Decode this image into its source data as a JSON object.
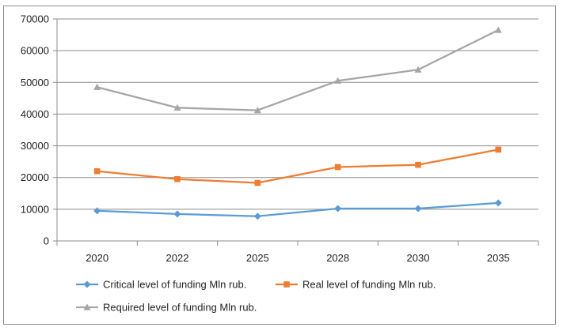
{
  "chart_data": {
    "type": "line",
    "title": "",
    "xlabel": "",
    "ylabel": "",
    "categories": [
      "2020",
      "2022",
      "2025",
      "2028",
      "2030",
      "2035"
    ],
    "ylim": [
      0,
      70000
    ],
    "yticks": [
      0,
      10000,
      20000,
      30000,
      40000,
      50000,
      60000,
      70000
    ],
    "ytick_labels": [
      "0",
      "10000",
      "20000",
      "30000",
      "40000",
      "50000",
      "60000",
      "70000"
    ],
    "grid": "horizontal",
    "legend_position": "bottom",
    "series": [
      {
        "name": "Critical level of funding Mln rub.",
        "values": [
          9500,
          8500,
          7800,
          10200,
          10200,
          12000
        ],
        "color": "#5b9bd5",
        "marker": "diamond"
      },
      {
        "name": "Real level of funding Mln rub.",
        "values": [
          22000,
          19500,
          18300,
          23300,
          24000,
          28800
        ],
        "color": "#ed7d31",
        "marker": "square"
      },
      {
        "name": "Required level of funding Mln rub.",
        "values": [
          48500,
          42000,
          41200,
          50500,
          54000,
          66500
        ],
        "color": "#a5a5a5",
        "marker": "triangle"
      }
    ]
  }
}
